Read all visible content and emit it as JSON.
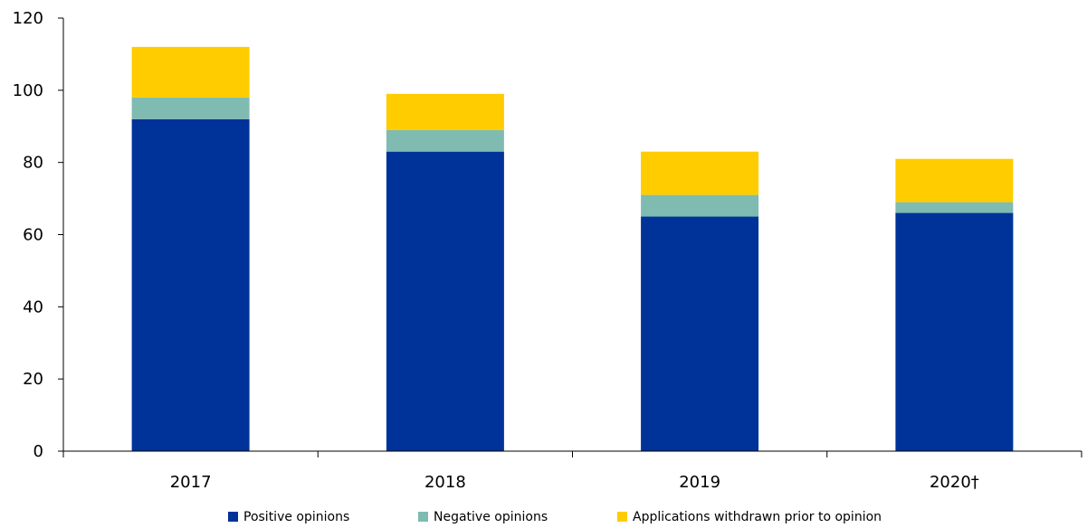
{
  "chart_data": {
    "type": "bar",
    "stacked": true,
    "categories": [
      "2017",
      "2018",
      "2019",
      "2020†"
    ],
    "series": [
      {
        "name": "Positive opinions",
        "values": [
          92,
          83,
          65,
          66
        ],
        "color": "#003399"
      },
      {
        "name": "Negative opinions",
        "values": [
          6,
          6,
          6,
          3
        ],
        "color": "#7fbbb1"
      },
      {
        "name": "Applications withdrawn prior to opinion",
        "values": [
          14,
          10,
          12,
          12
        ],
        "color": "#ffcc00"
      }
    ],
    "ylim": [
      0,
      120
    ],
    "yticks": [
      0,
      20,
      40,
      60,
      80,
      100,
      120
    ],
    "grid": false,
    "legend_position": "bottom"
  }
}
